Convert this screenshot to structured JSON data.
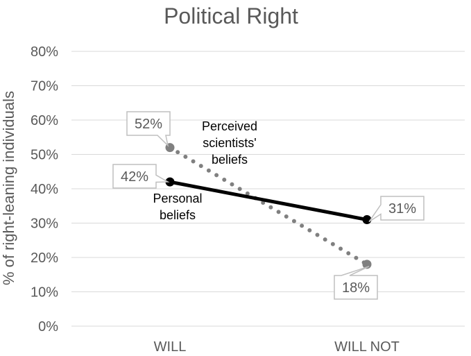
{
  "chart_data": {
    "type": "line",
    "title": "Political Right",
    "ylabel": "% of right-leaning individuals",
    "xlabel": "",
    "categories": [
      "WILL",
      "WILL NOT"
    ],
    "ylim": [
      0,
      80
    ],
    "yticks": [
      0,
      10,
      20,
      30,
      40,
      50,
      60,
      70,
      80
    ],
    "ytick_labels": [
      "0%",
      "10%",
      "20%",
      "30%",
      "40%",
      "50%",
      "60%",
      "70%",
      "80%"
    ],
    "grid": true,
    "series": [
      {
        "name": "Perceived scientists' beliefs",
        "name_lines": [
          "Perceived",
          "scientists'",
          "beliefs"
        ],
        "values": [
          52,
          18
        ],
        "value_labels": [
          "52%",
          "18%"
        ],
        "color": "#808080",
        "style": "dotted"
      },
      {
        "name": "Personal beliefs",
        "name_lines": [
          "Personal",
          "beliefs"
        ],
        "values": [
          42,
          31
        ],
        "value_labels": [
          "42%",
          "31%"
        ],
        "color": "#000000",
        "style": "solid"
      }
    ]
  }
}
